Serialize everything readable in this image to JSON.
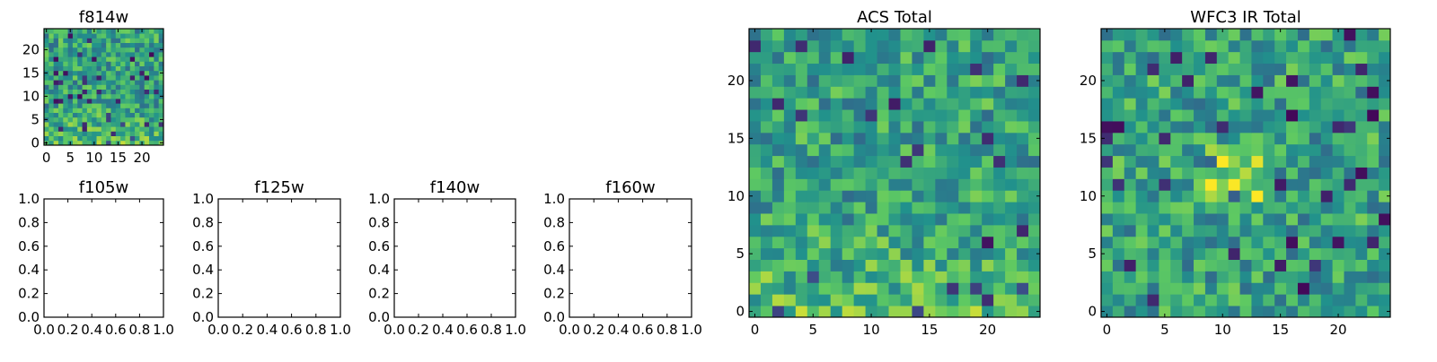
{
  "colormap": [
    "#440154",
    "#3b528b",
    "#21918c",
    "#5ec962",
    "#fde725"
  ],
  "chart_data": [
    {
      "id": "f814w",
      "type": "heatmap",
      "title": "f814w",
      "grid": [
        25,
        25
      ],
      "seed": 814,
      "hot_region": "bottom",
      "xlim": [
        -0.5,
        24.5
      ],
      "ylim": [
        -0.5,
        24.5
      ],
      "xticks": [
        0,
        5,
        10,
        15,
        20
      ],
      "yticks": [
        0,
        5,
        10,
        15,
        20
      ],
      "xlabel": "",
      "ylabel": ""
    },
    {
      "id": "f105w",
      "type": "empty",
      "title": "f105w",
      "xlim": [
        0,
        1
      ],
      "ylim": [
        0,
        1
      ],
      "xticks": [
        "0.0",
        "0.2",
        "0.4",
        "0.6",
        "0.8",
        "1.0"
      ],
      "yticks": [
        "0.0",
        "0.2",
        "0.4",
        "0.6",
        "0.8",
        "1.0"
      ]
    },
    {
      "id": "f125w",
      "type": "empty",
      "title": "f125w",
      "xlim": [
        0,
        1
      ],
      "ylim": [
        0,
        1
      ],
      "xticks": [
        "0.0",
        "0.2",
        "0.4",
        "0.6",
        "0.8",
        "1.0"
      ],
      "yticks": [
        "0.0",
        "0.2",
        "0.4",
        "0.6",
        "0.8",
        "1.0"
      ]
    },
    {
      "id": "f140w",
      "type": "empty",
      "title": "f140w",
      "xlim": [
        0,
        1
      ],
      "ylim": [
        0,
        1
      ],
      "xticks": [
        "0.0",
        "0.2",
        "0.4",
        "0.6",
        "0.8",
        "1.0"
      ],
      "yticks": [
        "0.0",
        "0.2",
        "0.4",
        "0.6",
        "0.8",
        "1.0"
      ]
    },
    {
      "id": "f160w",
      "type": "empty",
      "title": "f160w",
      "xlim": [
        0,
        1
      ],
      "ylim": [
        0,
        1
      ],
      "xticks": [
        "0.0",
        "0.2",
        "0.4",
        "0.6",
        "0.8",
        "1.0"
      ],
      "yticks": [
        "0.0",
        "0.2",
        "0.4",
        "0.6",
        "0.8",
        "1.0"
      ]
    },
    {
      "id": "acs-total",
      "type": "heatmap",
      "title": "ACS Total",
      "grid": [
        25,
        25
      ],
      "seed": 42,
      "hot_region": "bottom",
      "xlim": [
        -0.5,
        24.5
      ],
      "ylim": [
        -0.5,
        24.5
      ],
      "xticks": [
        0,
        5,
        10,
        15,
        20
      ],
      "yticks": [
        0,
        5,
        10,
        15,
        20
      ],
      "xlabel": "",
      "ylabel": ""
    },
    {
      "id": "wfc3-ir-total",
      "type": "heatmap",
      "title": "WFC3 IR Total",
      "grid": [
        25,
        25
      ],
      "seed": 7,
      "hot_region": "center",
      "xlim": [
        -0.5,
        24.5
      ],
      "ylim": [
        -0.5,
        24.5
      ],
      "xticks": [
        0,
        5,
        10,
        15,
        20
      ],
      "yticks": [
        0,
        5,
        10,
        15,
        20
      ],
      "xlabel": "",
      "ylabel": ""
    }
  ]
}
